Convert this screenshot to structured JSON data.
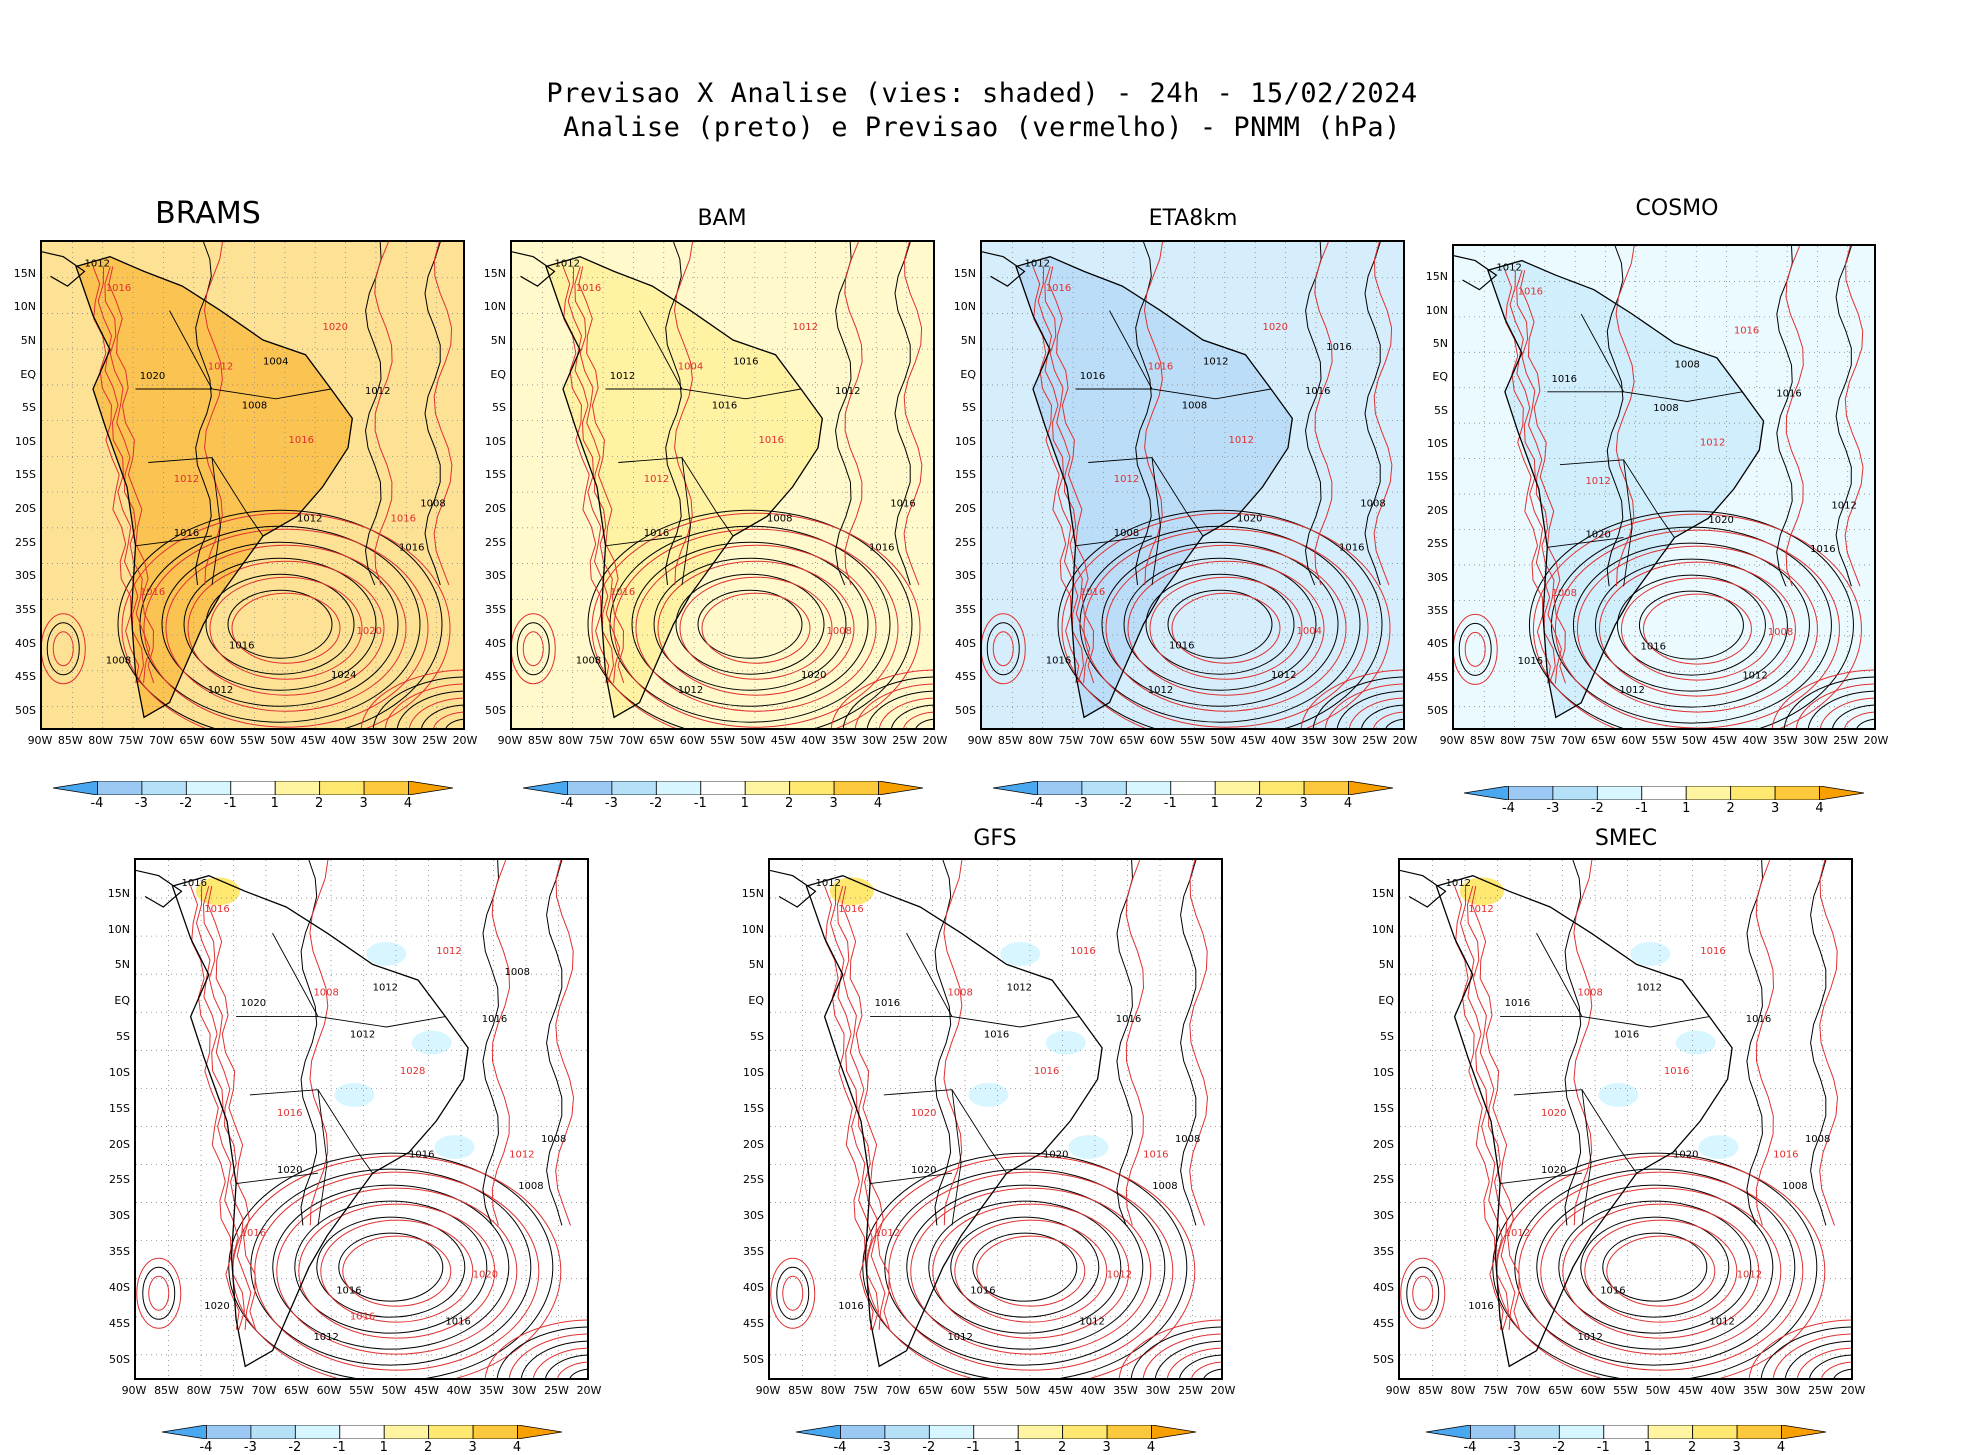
{
  "header": {
    "line1": "Previsao X Analise (vies: shaded) - 24h - 15/02/2024",
    "line2": "Analise (preto) e Previsao (vermelho) - PNMM (hPa)"
  },
  "colors": {
    "bias_neg4": "#4aa8f0",
    "bias_neg3": "#9cc8f4",
    "bias_neg2": "#b4e0f8",
    "bias_neg1": "#d8f6ff",
    "bias_zero": "#ffffff",
    "bias_pos1": "#fff4a0",
    "bias_pos2": "#ffe870",
    "bias_pos3": "#fcc83c",
    "bias_pos4": "#f8a000",
    "analysis_contour": "#000000",
    "forecast_contour": "#e03030",
    "coast": "#000000"
  },
  "axes": {
    "lat_labels": [
      "15N",
      "10N",
      "5N",
      "EQ",
      "5S",
      "10S",
      "15S",
      "20S",
      "25S",
      "30S",
      "35S",
      "40S",
      "45S",
      "50S"
    ],
    "lon_labels": [
      "90W",
      "85W",
      "80W",
      "75W",
      "70W",
      "65W",
      "60W",
      "55W",
      "50W",
      "45W",
      "40W",
      "35W",
      "30W",
      "25W",
      "20W"
    ]
  },
  "colorbar": {
    "labels": [
      "-4",
      "-3",
      "-2",
      "-1",
      "1",
      "2",
      "3",
      "4"
    ]
  },
  "panels": [
    {
      "title": "BRAMS",
      "bias_level": 3,
      "labels_black": [
        "1012",
        "1008",
        "1016",
        "1012",
        "1012",
        "1016",
        "1024",
        "1020",
        "1012",
        "1008",
        "1004",
        "1008",
        "1016"
      ],
      "labels_red": [
        "1016",
        "1016",
        "1016",
        "1020",
        "1012",
        "1020",
        "1012",
        "1016"
      ]
    },
    {
      "title": "BAM",
      "bias_level": 1,
      "labels_black": [
        "1012",
        "1016",
        "1016",
        "1012",
        "1012",
        "1016",
        "1020",
        "1012",
        "1008",
        "1008",
        "1016",
        "1016"
      ],
      "labels_red": [
        "1016",
        "1016",
        "1016",
        "1012",
        "1012",
        "1008",
        "1004"
      ]
    },
    {
      "title": "ETA8km",
      "bias_level": -2,
      "labels_black": [
        "1012",
        "1008",
        "1016",
        "1012",
        "1016",
        "1008",
        "1012",
        "1016",
        "1020",
        "1016",
        "1012",
        "1008",
        "1016",
        "1016"
      ],
      "labels_red": [
        "1016",
        "1012",
        "1016",
        "1020",
        "1012",
        "1004",
        "1016"
      ]
    },
    {
      "title": "COSMO",
      "bias_level": -1,
      "labels_black": [
        "1012",
        "1008",
        "1016",
        "1012",
        "1016",
        "1020",
        "1012",
        "1016",
        "1020",
        "1016",
        "1008",
        "1012",
        "1016"
      ],
      "labels_red": [
        "1016",
        "1012",
        "1008",
        "1016",
        "1012",
        "1008"
      ]
    },
    {
      "title": "",
      "bias_level": 0,
      "labels_black": [
        "1016",
        "1012",
        "1008",
        "1012",
        "1016",
        "1020",
        "1016",
        "1020",
        "1016",
        "1020",
        "1012",
        "1008",
        "1016",
        "1008"
      ],
      "labels_red": [
        "1016",
        "1028",
        "1016",
        "1012",
        "1016",
        "1020",
        "1008",
        "1012",
        "1016"
      ]
    },
    {
      "title": "GFS",
      "bias_level": 0,
      "labels_black": [
        "1012",
        "1016",
        "1008",
        "1012",
        "1016",
        "1020",
        "1012",
        "1016",
        "1020",
        "1016",
        "1012",
        "1008",
        "1016"
      ],
      "labels_red": [
        "1016",
        "1016",
        "1012",
        "1016",
        "1020",
        "1012",
        "1008",
        "1016"
      ]
    },
    {
      "title": "SMEC",
      "bias_level": 0,
      "labels_black": [
        "1012",
        "1016",
        "1008",
        "1012",
        "1016",
        "1020",
        "1012",
        "1016",
        "1020",
        "1016",
        "1012",
        "1008",
        "1016"
      ],
      "labels_red": [
        "1012",
        "1016",
        "1012",
        "1016",
        "1020",
        "1012",
        "1008",
        "1016"
      ]
    }
  ]
}
